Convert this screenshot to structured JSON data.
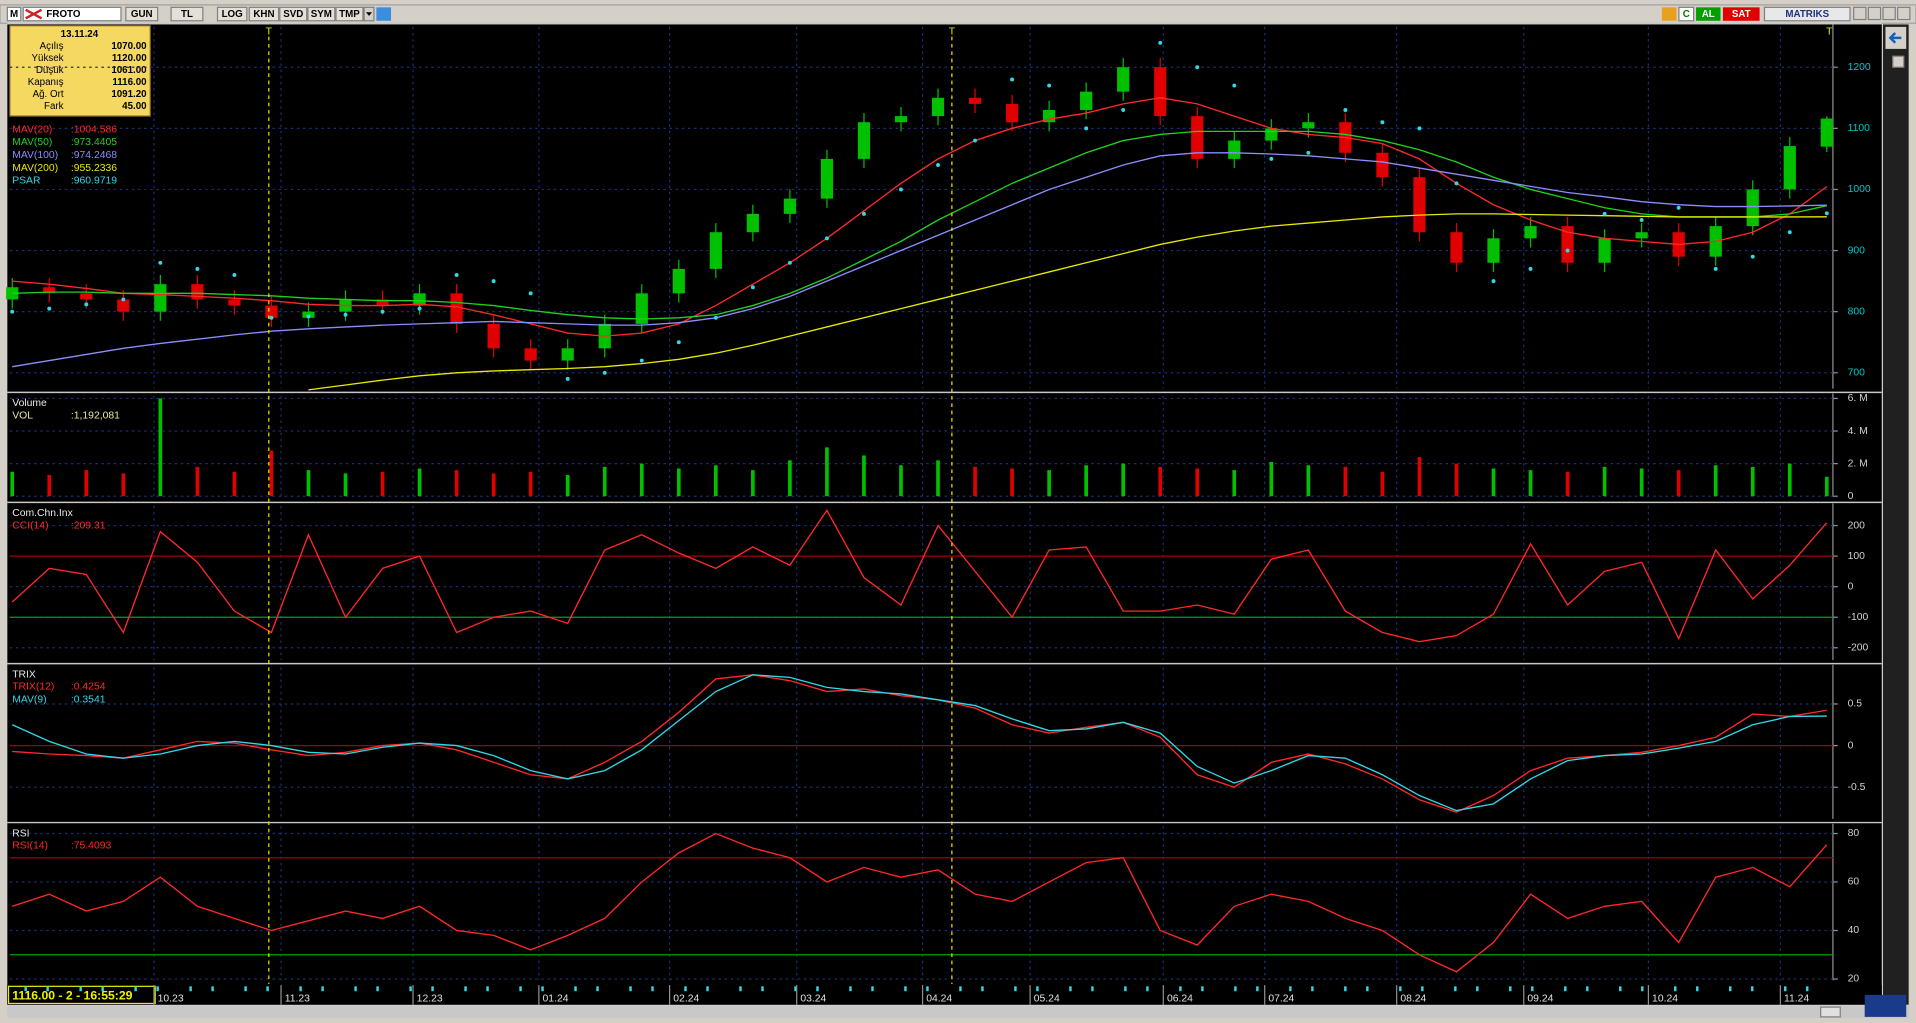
{
  "toolbar": {
    "logo": "M",
    "symbol": "FROTO",
    "buttons": [
      "GUN",
      "TL",
      "LOG",
      "KHN",
      "SVD",
      "SYM",
      "TMP"
    ],
    "right": [
      "C",
      "AL",
      "SAT",
      "MATRIKS"
    ]
  },
  "info": {
    "date": "13.11.24",
    "rows": [
      [
        "Açılış",
        "1070.00"
      ],
      [
        "Yüksek",
        "1120.00"
      ],
      [
        "Düşük",
        "1061.00"
      ],
      [
        "Kapanış",
        "1116.00"
      ],
      [
        "Ağ. Ort",
        "1091.20"
      ],
      [
        "Fark",
        "45.00"
      ]
    ]
  },
  "markers": [
    "T",
    "T",
    "T"
  ],
  "x_labels": [
    "10.23",
    "11.23",
    "12.23",
    "01.24",
    "02.24",
    "03.24",
    "04.24",
    "05.24",
    "06.24",
    "07.24",
    "08.24",
    "09.24",
    "10.24",
    "11.24"
  ],
  "status": "1116.00 - 2 - 16:55:29",
  "chart_data": [
    {
      "type": "candlestick",
      "up_color": "#00c000",
      "down_color": "#e00000",
      "open": [
        820,
        840,
        830,
        820,
        800,
        845,
        820,
        810,
        790,
        800,
        820,
        810,
        830,
        780,
        740,
        720,
        740,
        780,
        830,
        870,
        930,
        960,
        985,
        1050,
        1110,
        1120,
        1150,
        1140,
        1110,
        1130,
        1160,
        1200,
        1120,
        1050,
        1080,
        1100,
        1110,
        1060,
        1020,
        930,
        880,
        920,
        940,
        880,
        920,
        930,
        890,
        940,
        1000,
        1070
      ],
      "high": [
        855,
        855,
        845,
        835,
        860,
        860,
        835,
        825,
        815,
        835,
        835,
        845,
        845,
        795,
        755,
        755,
        795,
        845,
        885,
        945,
        975,
        1000,
        1065,
        1125,
        1135,
        1165,
        1165,
        1155,
        1145,
        1175,
        1215,
        1215,
        1135,
        1095,
        1115,
        1125,
        1125,
        1075,
        1035,
        945,
        935,
        955,
        955,
        935,
        945,
        945,
        955,
        1015,
        1086,
        1120
      ],
      "low": [
        805,
        815,
        805,
        785,
        785,
        805,
        795,
        775,
        775,
        785,
        795,
        795,
        765,
        725,
        705,
        705,
        725,
        765,
        815,
        855,
        915,
        945,
        970,
        1035,
        1095,
        1105,
        1125,
        1095,
        1095,
        1115,
        1145,
        1105,
        1035,
        1035,
        1065,
        1085,
        1045,
        1005,
        915,
        865,
        865,
        905,
        865,
        865,
        905,
        875,
        875,
        925,
        985,
        1061
      ],
      "close": [
        840,
        830,
        820,
        800,
        845,
        820,
        810,
        790,
        800,
        820,
        810,
        830,
        780,
        740,
        720,
        740,
        780,
        830,
        870,
        930,
        960,
        985,
        1050,
        1110,
        1120,
        1150,
        1140,
        1110,
        1130,
        1160,
        1200,
        1120,
        1050,
        1080,
        1100,
        1110,
        1060,
        1020,
        930,
        880,
        920,
        940,
        880,
        920,
        930,
        890,
        940,
        1000,
        1071,
        1116
      ],
      "series": [
        {
          "name": "MAV(20)",
          "readout": ":1004.586",
          "color": "#ff2828",
          "style": "line",
          "values": [
            850,
            845,
            838,
            830,
            828,
            825,
            822,
            818,
            812,
            810,
            810,
            812,
            808,
            795,
            780,
            765,
            760,
            765,
            780,
            810,
            845,
            880,
            920,
            965,
            1010,
            1050,
            1080,
            1100,
            1115,
            1125,
            1140,
            1150,
            1140,
            1120,
            1100,
            1090,
            1085,
            1075,
            1050,
            1010,
            975,
            950,
            930,
            920,
            915,
            910,
            915,
            930,
            960,
            1004.586
          ]
        },
        {
          "name": "MAV(50)",
          "readout": ":973.4405",
          "color": "#20d020",
          "style": "line",
          "values": [
            830,
            832,
            832,
            830,
            830,
            830,
            828,
            826,
            822,
            820,
            818,
            818,
            815,
            810,
            802,
            795,
            790,
            788,
            790,
            795,
            810,
            830,
            855,
            885,
            915,
            950,
            980,
            1010,
            1035,
            1060,
            1080,
            1090,
            1095,
            1095,
            1095,
            1095,
            1090,
            1080,
            1065,
            1045,
            1020,
            1000,
            985,
            970,
            960,
            955,
            955,
            955,
            960,
            973.4405
          ]
        },
        {
          "name": "MAV(100)",
          "readout": ":974.2468",
          "color": "#8c8cff",
          "style": "line",
          "values": [
            710,
            720,
            730,
            740,
            748,
            755,
            762,
            768,
            772,
            775,
            778,
            780,
            782,
            784,
            782,
            780,
            778,
            778,
            782,
            790,
            805,
            825,
            850,
            875,
            900,
            925,
            950,
            975,
            1000,
            1020,
            1040,
            1055,
            1060,
            1060,
            1058,
            1055,
            1050,
            1045,
            1035,
            1025,
            1015,
            1005,
            995,
            988,
            980,
            975,
            972,
            972,
            973,
            974.2468
          ]
        },
        {
          "name": "MAV(200)",
          "readout": ":955.2336",
          "color": "#e8e800",
          "style": "line",
          "values": [
            null,
            null,
            null,
            null,
            null,
            null,
            null,
            null,
            672,
            680,
            688,
            695,
            700,
            703,
            705,
            707,
            710,
            715,
            722,
            732,
            745,
            760,
            775,
            790,
            805,
            820,
            835,
            850,
            865,
            880,
            895,
            910,
            922,
            932,
            940,
            945,
            950,
            955,
            958,
            960,
            960,
            959,
            958,
            957,
            956,
            955,
            955,
            955,
            955,
            955.2336
          ]
        },
        {
          "name": "PSAR",
          "readout": ":960.9719",
          "color": "#30d8e8",
          "style": "dots",
          "values": [
            800,
            805,
            812,
            820,
            880,
            870,
            860,
            790,
            792,
            795,
            800,
            805,
            860,
            850,
            830,
            690,
            700,
            720,
            750,
            790,
            840,
            880,
            920,
            960,
            1000,
            1040,
            1080,
            1180,
            1170,
            1100,
            1130,
            1240,
            1200,
            1170,
            1050,
            1060,
            1130,
            1110,
            1100,
            1010,
            850,
            870,
            900,
            960,
            950,
            970,
            870,
            890,
            930,
            960.9719
          ]
        }
      ],
      "ylim": [
        674,
        1266
      ],
      "yticks": [
        700,
        800,
        900,
        1000,
        1100,
        1200
      ],
      "grid": true,
      "axis_color": "#00c8c8"
    },
    {
      "type": "bar",
      "title": "Volume",
      "series": [
        {
          "name": "VOL",
          "readout": ":1,192,081",
          "color": "#e8e8a0",
          "values": [
            1500000,
            1300000,
            1600000,
            1400000,
            6000000,
            1800000,
            1500000,
            2800000,
            1600000,
            1400000,
            1500000,
            1700000,
            1600000,
            1400000,
            1500000,
            1300000,
            1800000,
            2000000,
            1700000,
            1900000,
            1600000,
            2200000,
            3000000,
            2500000,
            1900000,
            2200000,
            1800000,
            1700000,
            1600000,
            1900000,
            2000000,
            1800000,
            1700000,
            1600000,
            2100000,
            1900000,
            1800000,
            1500000,
            2400000,
            2000000,
            1700000,
            1600000,
            1500000,
            1800000,
            1700000,
            1600000,
            1900000,
            1800000,
            2000000,
            1192081
          ]
        }
      ],
      "ylim": [
        0,
        6150000
      ],
      "yticks": [
        0,
        {
          "value": 2000000,
          "label": "2. M"
        },
        {
          "value": 4000000,
          "label": "4. M"
        },
        {
          "value": 6000000,
          "label": "6. M"
        }
      ],
      "grid": true,
      "axis_color": "#d0d0d0"
    },
    {
      "type": "line",
      "title": "Com.Chn.Inx",
      "series": [
        {
          "name": "CCI(14)",
          "readout": ":209.31",
          "color": "#ff2828",
          "values": [
            -50,
            60,
            40,
            -150,
            180,
            80,
            -80,
            -150,
            170,
            -100,
            60,
            100,
            -150,
            -100,
            -80,
            -120,
            120,
            170,
            110,
            60,
            130,
            70,
            250,
            30,
            -60,
            200,
            50,
            -100,
            120,
            130,
            -80,
            -80,
            -60,
            -90,
            90,
            120,
            -80,
            -150,
            -180,
            -160,
            -90,
            140,
            -60,
            50,
            80,
            -170,
            120,
            -40,
            70,
            209.31
          ]
        }
      ],
      "reference_lines": [
        {
          "value": 100,
          "color": "#a00000"
        },
        {
          "value": -100,
          "color": "#00a000"
        }
      ],
      "ylim": [
        -240,
        264
      ],
      "yticks": [
        -200,
        -100,
        0,
        100,
        200
      ],
      "grid": true,
      "axis_color": "#d0d0d0"
    },
    {
      "type": "line",
      "title": "TRIX",
      "series": [
        {
          "name": "TRIX(12)",
          "readout": ":0.4254",
          "color": "#ff2828",
          "values": [
            -0.07,
            -0.1,
            -0.12,
            -0.15,
            -0.05,
            0.05,
            0.03,
            -0.05,
            -0.12,
            -0.08,
            0.0,
            0.03,
            -0.05,
            -0.2,
            -0.35,
            -0.4,
            -0.2,
            0.05,
            0.4,
            0.8,
            0.85,
            0.78,
            0.65,
            0.68,
            0.6,
            0.55,
            0.45,
            0.25,
            0.15,
            0.22,
            0.28,
            0.1,
            -0.35,
            -0.5,
            -0.2,
            -0.1,
            -0.22,
            -0.4,
            -0.65,
            -0.8,
            -0.6,
            -0.3,
            -0.15,
            -0.12,
            -0.08,
            0.0,
            0.1,
            0.38,
            0.35,
            0.4254
          ]
        },
        {
          "name": "MAV(9)",
          "readout": ":0.3541",
          "color": "#30d8e8",
          "values": [
            0.25,
            0.05,
            -0.1,
            -0.15,
            -0.1,
            0.0,
            0.05,
            0.0,
            -0.08,
            -0.1,
            -0.02,
            0.03,
            0.0,
            -0.12,
            -0.3,
            -0.4,
            -0.3,
            -0.05,
            0.3,
            0.65,
            0.85,
            0.82,
            0.7,
            0.65,
            0.62,
            0.55,
            0.48,
            0.32,
            0.18,
            0.2,
            0.28,
            0.15,
            -0.25,
            -0.45,
            -0.3,
            -0.12,
            -0.15,
            -0.35,
            -0.6,
            -0.78,
            -0.7,
            -0.4,
            -0.18,
            -0.12,
            -0.1,
            -0.03,
            0.05,
            0.25,
            0.35,
            0.3541
          ]
        }
      ],
      "reference_lines": [
        {
          "value": 0,
          "color": "#a00000"
        }
      ],
      "ylim": [
        -0.88,
        0.94
      ],
      "yticks": [
        -0.5,
        0,
        0.5
      ],
      "grid": true,
      "axis_color": "#d0d0d0"
    },
    {
      "type": "line",
      "title": "RSI",
      "series": [
        {
          "name": "RSI(14)",
          "readout": ":75.4093",
          "color": "#ff2828",
          "values": [
            50,
            55,
            48,
            52,
            62,
            50,
            45,
            40,
            44,
            48,
            45,
            50,
            40,
            38,
            32,
            38,
            45,
            60,
            72,
            80,
            74,
            70,
            60,
            66,
            62,
            65,
            55,
            52,
            60,
            68,
            70,
            40,
            34,
            50,
            55,
            52,
            45,
            40,
            30,
            23,
            35,
            55,
            45,
            50,
            52,
            35,
            62,
            66,
            58,
            75.4093
          ]
        }
      ],
      "reference_lines": [
        {
          "value": 70,
          "color": "#a00000"
        },
        {
          "value": 30,
          "color": "#00a000"
        }
      ],
      "ylim": [
        19.5,
        83
      ],
      "yticks": [
        20,
        40,
        60,
        80
      ],
      "grid": true,
      "axis_color": "#d0d0d0"
    }
  ]
}
